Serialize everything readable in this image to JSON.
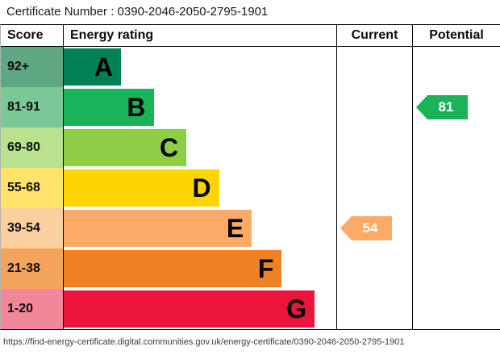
{
  "certificate": {
    "label": "Certificate Number : 0390-2046-2050-2795-1901"
  },
  "header": {
    "score": "Score",
    "energy_rating": "Energy rating",
    "current": "Current",
    "potential": "Potential"
  },
  "chart_data": {
    "type": "bar",
    "title": "Energy efficiency rating chart",
    "bands": [
      {
        "score": "92+",
        "letter": "A",
        "color": "#008054"
      },
      {
        "score": "81-91",
        "letter": "B",
        "color": "#19b459"
      },
      {
        "score": "69-80",
        "letter": "C",
        "color": "#8dce46"
      },
      {
        "score": "55-68",
        "letter": "D",
        "color": "#ffd500"
      },
      {
        "score": "39-54",
        "letter": "E",
        "color": "#fcaa65"
      },
      {
        "score": "21-38",
        "letter": "F",
        "color": "#ef8023"
      },
      {
        "score": "1-20",
        "letter": "G",
        "color": "#e9153b"
      }
    ],
    "current": {
      "value": 54,
      "band": "E",
      "color": "#fcaa65"
    },
    "potential": {
      "value": 81,
      "band": "B",
      "color": "#19b459"
    }
  },
  "footer": {
    "url": "https://find-energy-certificate.digital.communities.gov.uk/energy-certificate/0390-2046-2050-2795-1901"
  }
}
